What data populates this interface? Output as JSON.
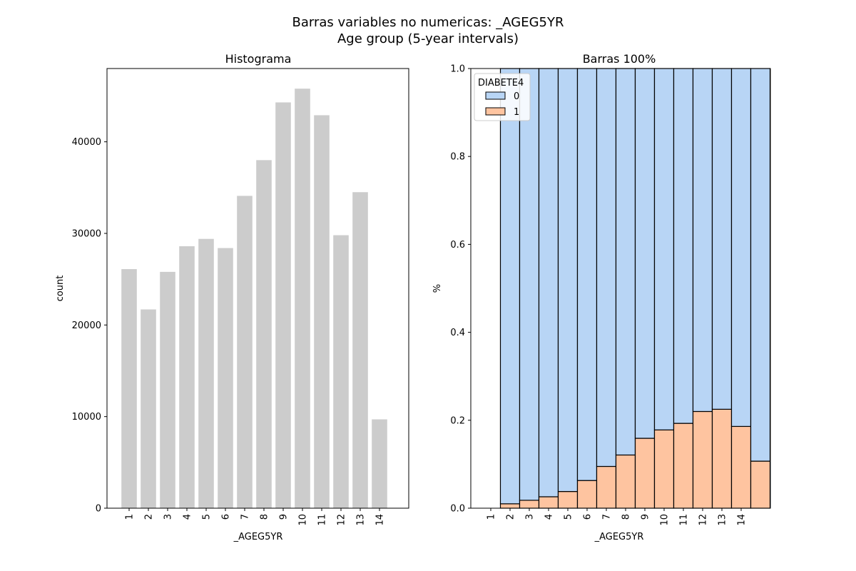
{
  "figure": {
    "title_line1": "Barras variables no numericas: _AGEG5YR",
    "title_line2": "Age group (5-year intervals)"
  },
  "colors": {
    "hist_bar": "#cccccc",
    "class0": "#b8d5f5",
    "class1": "#fec4a0",
    "edge": "#000000"
  },
  "chart_data": [
    {
      "type": "bar",
      "title": "Histograma",
      "xlabel": "_AGEG5YR",
      "ylabel": "count",
      "categories": [
        "1",
        "2",
        "3",
        "4",
        "5",
        "6",
        "7",
        "8",
        "9",
        "10",
        "11",
        "12",
        "13",
        "14"
      ],
      "values": [
        26100,
        21700,
        25800,
        28600,
        29400,
        28400,
        34100,
        38000,
        44300,
        45800,
        42900,
        29800,
        34500,
        9700
      ],
      "ylim": [
        0,
        48000
      ],
      "yticks": [
        "0",
        "10000",
        "20000",
        "30000",
        "40000"
      ],
      "grid": false
    },
    {
      "type": "bar",
      "stacked": "100%",
      "title": "Barras 100%",
      "xlabel": "_AGEG5YR",
      "ylabel": "%",
      "categories": [
        "1",
        "2",
        "3",
        "4",
        "5",
        "6",
        "7",
        "8",
        "9",
        "10",
        "11",
        "12",
        "13",
        "14"
      ],
      "legend_title": "DIABETE4",
      "legend_position": "upper-left",
      "series": [
        {
          "name": "0",
          "values": [
            0.99,
            0.982,
            0.974,
            0.962,
            0.937,
            0.905,
            0.879,
            0.841,
            0.822,
            0.807,
            0.78,
            0.775,
            0.814,
            0.893
          ]
        },
        {
          "name": "1",
          "values": [
            0.01,
            0.018,
            0.026,
            0.038,
            0.063,
            0.095,
            0.121,
            0.159,
            0.178,
            0.193,
            0.22,
            0.225,
            0.186,
            0.107
          ]
        }
      ],
      "ylim": [
        0,
        1
      ],
      "yticks": [
        "0.0",
        "0.2",
        "0.4",
        "0.6",
        "0.8",
        "1.0"
      ],
      "grid": false
    }
  ]
}
